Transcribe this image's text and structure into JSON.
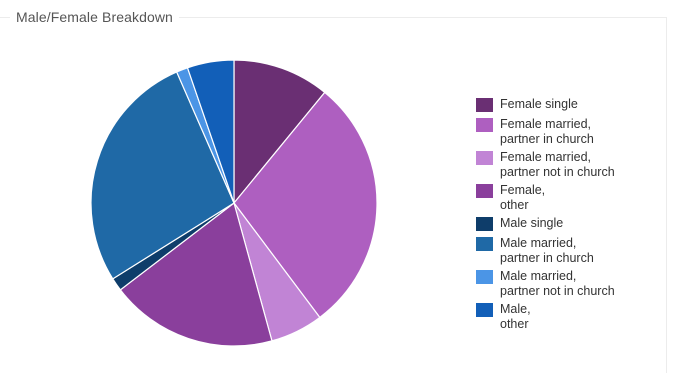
{
  "title": "Male/Female Breakdown",
  "chart_data": {
    "type": "pie",
    "title": "Male/Female Breakdown",
    "legend_position": "right",
    "start_angle_deg": 0,
    "direction": "clockwise",
    "slices": [
      {
        "label": "Female single",
        "value": 11,
        "color": "#6a2f73"
      },
      {
        "label": "Female married,\npartner in church",
        "value": 29,
        "color": "#ae5fc0"
      },
      {
        "label": "Female married,\npartner not in church",
        "value": 6,
        "color": "#c184d5"
      },
      {
        "label": "Female,\nother",
        "value": 19,
        "color": "#8a3f9c"
      },
      {
        "label": "Male single",
        "value": 1.5,
        "color": "#0e3d6a"
      },
      {
        "label": "Male married,\npartner in church",
        "value": 27.5,
        "color": "#1f69a6"
      },
      {
        "label": "Male married,\npartner not in church",
        "value": 1.3,
        "color": "#4b95e6"
      },
      {
        "label": "Male,\nother",
        "value": 5.3,
        "color": "#125fb8"
      }
    ]
  }
}
